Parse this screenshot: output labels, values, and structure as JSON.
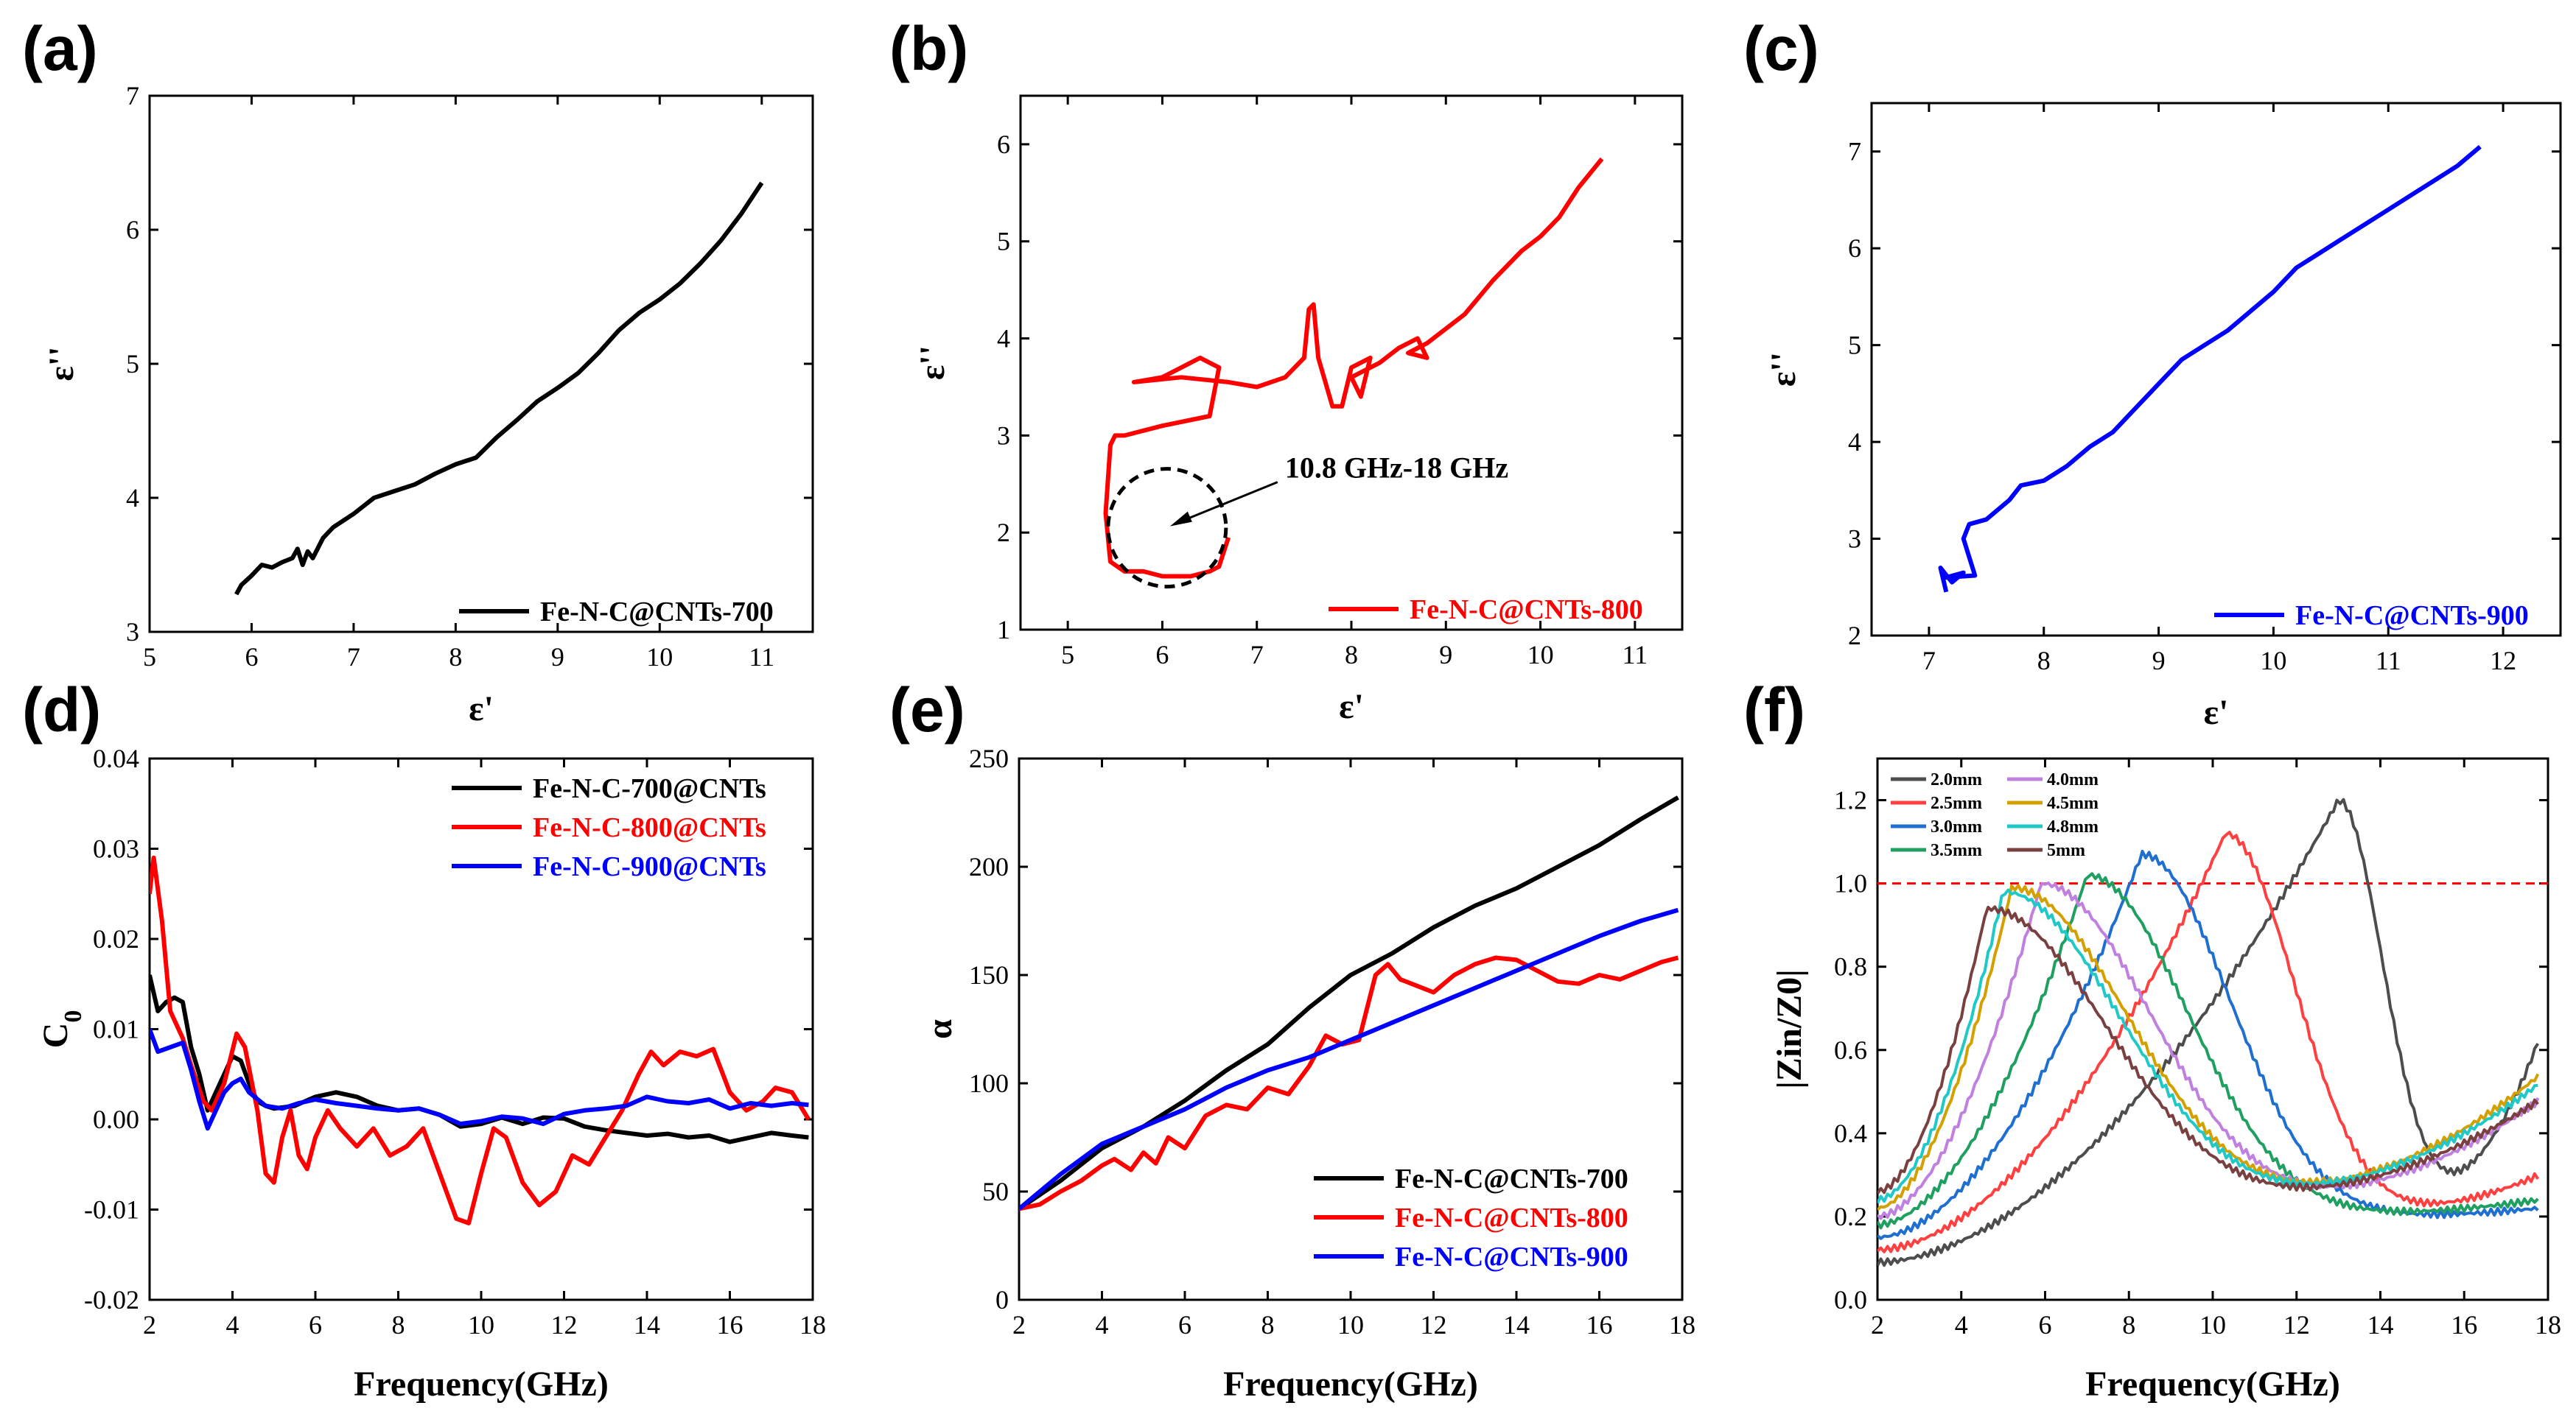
{
  "panels": [
    {
      "id": "a",
      "label": "(a)"
    },
    {
      "id": "b",
      "label": "(b)"
    },
    {
      "id": "c",
      "label": "(c)"
    },
    {
      "id": "d",
      "label": "(d)"
    },
    {
      "id": "e",
      "label": "(e)"
    },
    {
      "id": "f",
      "label": "(f)"
    }
  ],
  "chart_data": [
    {
      "id": "a",
      "type": "line",
      "xlabel": "ε'",
      "ylabel": "ε''",
      "xlim": [
        5,
        11.5
      ],
      "ylim": [
        3,
        7
      ],
      "xticks": [
        "5",
        "6",
        "7",
        "8",
        "9",
        "10",
        "11"
      ],
      "yticks": [
        "3",
        "4",
        "5",
        "6",
        "7"
      ],
      "legend": "bottom-right",
      "series": [
        {
          "name": "Fe-N-C@CNTs-700",
          "color": "#000000",
          "x": [
            5.85,
            5.9,
            6.0,
            6.1,
            6.2,
            6.3,
            6.4,
            6.45,
            6.5,
            6.55,
            6.6,
            6.7,
            6.8,
            7.0,
            7.2,
            7.4,
            7.6,
            7.8,
            8.0,
            8.2,
            8.4,
            8.6,
            8.8,
            9.0,
            9.2,
            9.4,
            9.6,
            9.8,
            10.0,
            10.2,
            10.4,
            10.6,
            10.8,
            11.0
          ],
          "y": [
            3.28,
            3.35,
            3.42,
            3.5,
            3.48,
            3.52,
            3.55,
            3.62,
            3.5,
            3.6,
            3.55,
            3.7,
            3.78,
            3.88,
            4.0,
            4.05,
            4.1,
            4.18,
            4.25,
            4.3,
            4.45,
            4.58,
            4.72,
            4.82,
            4.93,
            5.08,
            5.25,
            5.38,
            5.48,
            5.6,
            5.75,
            5.92,
            6.12,
            6.35
          ]
        }
      ]
    },
    {
      "id": "b",
      "type": "line",
      "xlabel": "ε'",
      "ylabel": "ε''",
      "xlim": [
        4.5,
        11.5
      ],
      "ylim": [
        1,
        6.5
      ],
      "xticks": [
        "5",
        "6",
        "7",
        "8",
        "9",
        "10",
        "11"
      ],
      "yticks": [
        "1",
        "2",
        "3",
        "4",
        "5",
        "6"
      ],
      "legend": "bottom-right",
      "annotation": "10.8 GHz-18 GHz",
      "series": [
        {
          "name": "Fe-N-C@CNTs-800",
          "color": "#ff0000",
          "x": [
            6.7,
            6.65,
            6.6,
            6.5,
            6.3,
            6.0,
            5.8,
            5.6,
            5.45,
            5.4,
            5.45,
            5.5,
            5.6,
            6.0,
            6.5,
            6.6,
            6.4,
            6.0,
            5.7,
            6.2,
            6.7,
            7.0,
            7.3,
            7.5,
            7.55,
            7.6,
            7.65,
            7.8,
            7.9,
            8.0,
            8.2,
            8.1,
            8.0,
            8.3,
            8.5,
            8.7,
            8.8,
            8.6,
            8.8,
            9.2,
            9.5,
            9.8,
            10.0,
            10.2,
            10.4,
            10.65
          ],
          "y": [
            1.95,
            1.8,
            1.65,
            1.6,
            1.55,
            1.55,
            1.6,
            1.6,
            1.7,
            2.2,
            2.9,
            3.0,
            3.0,
            3.1,
            3.2,
            3.7,
            3.8,
            3.6,
            3.55,
            3.6,
            3.55,
            3.5,
            3.6,
            3.8,
            4.3,
            4.35,
            3.8,
            3.3,
            3.3,
            3.7,
            3.8,
            3.4,
            3.6,
            3.75,
            3.9,
            4.0,
            3.8,
            3.85,
            3.95,
            4.25,
            4.6,
            4.9,
            5.05,
            5.25,
            5.55,
            5.85
          ]
        }
      ]
    },
    {
      "id": "c",
      "type": "line",
      "xlabel": "ε'",
      "ylabel": "ε''",
      "xlim": [
        6.5,
        12.5
      ],
      "ylim": [
        2,
        7.5
      ],
      "xticks": [
        "7",
        "8",
        "9",
        "10",
        "11",
        "12"
      ],
      "yticks": [
        "2",
        "3",
        "4",
        "5",
        "6",
        "7"
      ],
      "legend": "bottom-right",
      "series": [
        {
          "name": "Fe-N-C@CNTs-900",
          "color": "#0000ff",
          "x": [
            7.15,
            7.1,
            7.2,
            7.3,
            7.15,
            7.4,
            7.3,
            7.35,
            7.5,
            7.7,
            7.8,
            8.0,
            8.2,
            8.4,
            8.6,
            8.8,
            9.0,
            9.2,
            9.4,
            9.6,
            9.8,
            10.0,
            10.2,
            10.4,
            10.6,
            10.8,
            11.0,
            11.2,
            11.4,
            11.6,
            11.8
          ],
          "y": [
            2.45,
            2.7,
            2.55,
            2.65,
            2.6,
            2.62,
            3.0,
            3.15,
            3.2,
            3.4,
            3.55,
            3.6,
            3.75,
            3.95,
            4.1,
            4.35,
            4.6,
            4.85,
            5.0,
            5.15,
            5.35,
            5.55,
            5.8,
            5.95,
            6.1,
            6.25,
            6.4,
            6.55,
            6.7,
            6.85,
            7.05
          ]
        }
      ]
    },
    {
      "id": "d",
      "type": "line",
      "xlabel": "Frequency(GHz)",
      "ylabel": "C0",
      "xlim": [
        2,
        18
      ],
      "ylim": [
        -0.02,
        0.04
      ],
      "xticks": [
        "2",
        "4",
        "6",
        "8",
        "10",
        "12",
        "14",
        "16",
        "18"
      ],
      "yticks": [
        "-0.02",
        "-0.01",
        "0.00",
        "0.01",
        "0.02",
        "0.03",
        "0.04"
      ],
      "legend": "top-right",
      "series": [
        {
          "name": "Fe-N-C-700@CNTs",
          "color": "#000000",
          "x": [
            2.0,
            2.2,
            2.4,
            2.6,
            2.8,
            3.0,
            3.2,
            3.4,
            3.6,
            3.8,
            4.0,
            4.2,
            4.4,
            4.6,
            4.8,
            5.0,
            5.5,
            6.0,
            6.5,
            7.0,
            7.5,
            8.0,
            8.5,
            9.0,
            9.5,
            10.0,
            10.5,
            11.0,
            11.5,
            12.0,
            12.5,
            13.0,
            13.5,
            14.0,
            14.5,
            15.0,
            15.5,
            16.0,
            16.5,
            17.0,
            17.5,
            17.9
          ],
          "y": [
            0.016,
            0.012,
            0.013,
            0.0135,
            0.013,
            0.008,
            0.005,
            0.001,
            0.003,
            0.005,
            0.007,
            0.0065,
            0.004,
            0.002,
            0.0015,
            0.0012,
            0.0015,
            0.0025,
            0.003,
            0.0025,
            0.0015,
            0.001,
            0.0012,
            0.0005,
            -0.0008,
            -0.0005,
            0.0002,
            -0.0005,
            0.0002,
            0.0001,
            -0.0008,
            -0.0012,
            -0.0015,
            -0.0018,
            -0.0016,
            -0.002,
            -0.0018,
            -0.0025,
            -0.002,
            -0.0015,
            -0.0018,
            -0.002
          ]
        },
        {
          "name": "Fe-N-C-800@CNTs",
          "color": "#ff0000",
          "x": [
            2.0,
            2.1,
            2.3,
            2.5,
            2.8,
            3.0,
            3.3,
            3.5,
            3.8,
            4.1,
            4.3,
            4.6,
            4.8,
            5.0,
            5.2,
            5.4,
            5.6,
            5.8,
            6.0,
            6.3,
            6.6,
            7.0,
            7.4,
            7.8,
            8.2,
            8.6,
            9.0,
            9.4,
            9.7,
            10.0,
            10.3,
            10.6,
            11.0,
            11.4,
            11.8,
            12.2,
            12.6,
            13.0,
            13.4,
            13.8,
            14.1,
            14.4,
            14.8,
            15.2,
            15.6,
            16.0,
            16.4,
            16.8,
            17.1,
            17.5,
            17.9
          ],
          "y": [
            0.025,
            0.029,
            0.022,
            0.012,
            0.009,
            0.006,
            0.002,
            0.001,
            0.004,
            0.0095,
            0.008,
            0.001,
            -0.006,
            -0.007,
            -0.002,
            0.001,
            -0.004,
            -0.0055,
            -0.002,
            0.001,
            -0.001,
            -0.003,
            -0.001,
            -0.004,
            -0.003,
            -0.001,
            -0.006,
            -0.011,
            -0.0115,
            -0.006,
            -0.001,
            -0.002,
            -0.007,
            -0.0095,
            -0.008,
            -0.004,
            -0.005,
            -0.002,
            0.001,
            0.005,
            0.0075,
            0.006,
            0.0075,
            0.007,
            0.0078,
            0.003,
            0.001,
            0.002,
            0.0035,
            0.003,
            0.0
          ]
        },
        {
          "name": "Fe-N-C-900@CNTs",
          "color": "#0000ff",
          "x": [
            2.0,
            2.2,
            2.5,
            2.8,
            3.0,
            3.2,
            3.4,
            3.6,
            3.8,
            4.0,
            4.2,
            4.4,
            4.8,
            5.2,
            5.6,
            6.0,
            6.5,
            7.0,
            7.5,
            8.0,
            8.5,
            9.0,
            9.5,
            10.0,
            10.5,
            11.0,
            11.5,
            12.0,
            12.5,
            13.0,
            13.5,
            14.0,
            14.5,
            15.0,
            15.5,
            16.0,
            16.5,
            17.0,
            17.5,
            17.9
          ],
          "y": [
            0.01,
            0.0075,
            0.008,
            0.0085,
            0.0055,
            0.002,
            -0.001,
            0.001,
            0.003,
            0.004,
            0.0045,
            0.003,
            0.0015,
            0.0012,
            0.0018,
            0.0022,
            0.0018,
            0.0015,
            0.0012,
            0.001,
            0.0012,
            0.0005,
            -0.0005,
            -0.0002,
            0.0003,
            0.0001,
            -0.0005,
            0.0006,
            0.001,
            0.0012,
            0.0015,
            0.0025,
            0.002,
            0.0018,
            0.0022,
            0.0012,
            0.0018,
            0.0015,
            0.0018,
            0.0016
          ]
        }
      ]
    },
    {
      "id": "e",
      "type": "line",
      "xlabel": "Frequency(GHz)",
      "ylabel": "α",
      "xlim": [
        2,
        18
      ],
      "ylim": [
        0,
        250
      ],
      "xticks": [
        "2",
        "4",
        "6",
        "8",
        "10",
        "12",
        "14",
        "16",
        "18"
      ],
      "yticks": [
        "0",
        "50",
        "100",
        "150",
        "200",
        "250"
      ],
      "legend": "bottom-right",
      "series": [
        {
          "name": "Fe-N-C@CNTs-700",
          "color": "#000000",
          "x": [
            2,
            3,
            4,
            5,
            6,
            7,
            8,
            9,
            10,
            11,
            12,
            13,
            14,
            15,
            16,
            17,
            17.9
          ],
          "y": [
            42,
            55,
            70,
            80,
            92,
            106,
            118,
            135,
            150,
            160,
            172,
            182,
            190,
            200,
            210,
            222,
            232
          ]
        },
        {
          "name": "Fe-N-C@CNTs-800",
          "color": "#ff0000",
          "x": [
            2,
            2.5,
            3,
            3.5,
            4,
            4.3,
            4.7,
            5,
            5.3,
            5.6,
            6,
            6.5,
            7,
            7.5,
            8,
            8.5,
            9,
            9.4,
            9.8,
            10.2,
            10.6,
            10.9,
            11.2,
            11.6,
            12,
            12.5,
            13,
            13.5,
            14,
            14.5,
            15,
            15.5,
            16,
            16.5,
            17,
            17.5,
            17.9
          ],
          "y": [
            42,
            44,
            50,
            55,
            62,
            65,
            60,
            68,
            63,
            75,
            70,
            85,
            90,
            88,
            98,
            95,
            108,
            122,
            118,
            120,
            150,
            155,
            148,
            145,
            142,
            150,
            155,
            158,
            157,
            152,
            147,
            146,
            150,
            148,
            152,
            156,
            158
          ]
        },
        {
          "name": "Fe-N-C@CNTs-900",
          "color": "#0000ff",
          "x": [
            2,
            3,
            4,
            5,
            6,
            7,
            8,
            9,
            10,
            11,
            12,
            13,
            14,
            15,
            16,
            17,
            17.9
          ],
          "y": [
            42,
            58,
            72,
            80,
            88,
            98,
            106,
            112,
            120,
            128,
            136,
            144,
            152,
            160,
            168,
            175,
            180
          ]
        }
      ]
    },
    {
      "id": "f",
      "type": "line",
      "xlabel": "Frequency(GHz)",
      "ylabel": "|Zin/Z0|",
      "xlim": [
        2,
        18
      ],
      "ylim": [
        0,
        1.3
      ],
      "xticks": [
        "2",
        "4",
        "6",
        "8",
        "10",
        "12",
        "14",
        "16",
        "18"
      ],
      "yticks": [
        "0.0",
        "0.2",
        "0.4",
        "0.6",
        "0.8",
        "1.0",
        "1.2"
      ],
      "legend": "top-left",
      "reference_line": 1.0,
      "series": [
        {
          "name": "2.0mm",
          "color": "#4d4d4d",
          "peak_x": 13.0,
          "peak_y": 1.2,
          "start_y": 0.09,
          "end_y": 0.63
        },
        {
          "name": "2.5mm",
          "color": "#ff4040",
          "peak_x": 10.3,
          "peak_y": 1.12,
          "start_y": 0.12,
          "end_y": 0.3
        },
        {
          "name": "3.0mm",
          "color": "#1f6fd0",
          "peak_x": 8.3,
          "peak_y": 1.07,
          "start_y": 0.15,
          "end_y": 0.22
        },
        {
          "name": "3.5mm",
          "color": "#20a060",
          "peak_x": 7.0,
          "peak_y": 1.02,
          "start_y": 0.18,
          "end_y": 0.24
        },
        {
          "name": "4.0mm",
          "color": "#c080e0",
          "peak_x": 5.9,
          "peak_y": 1.0,
          "start_y": 0.2,
          "end_y": 0.48
        },
        {
          "name": "4.5mm",
          "color": "#d4a000",
          "peak_x": 5.2,
          "peak_y": 0.99,
          "start_y": 0.22,
          "end_y": 0.54
        },
        {
          "name": "4.8mm",
          "color": "#20c8c8",
          "peak_x": 5.0,
          "peak_y": 0.98,
          "start_y": 0.24,
          "end_y": 0.52
        },
        {
          "name": "5mm",
          "color": "#7a4040",
          "peak_x": 4.6,
          "peak_y": 0.94,
          "start_y": 0.26,
          "end_y": 0.48
        }
      ]
    }
  ]
}
